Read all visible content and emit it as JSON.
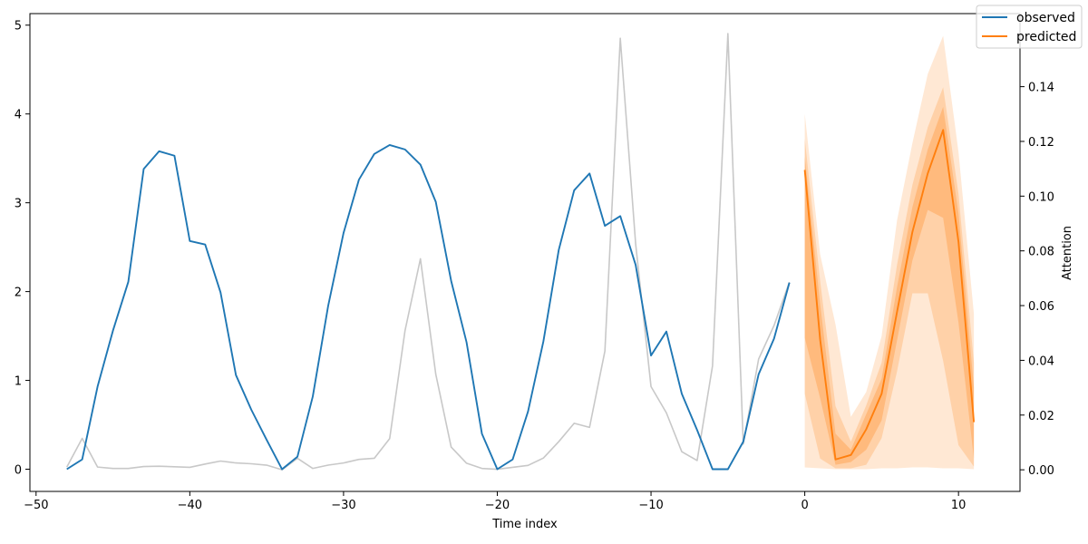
{
  "chart_data": {
    "type": "line",
    "xlabel": "Time index",
    "ylabel": "",
    "y2label": "Attention",
    "xlim": [
      -50.4,
      14
    ],
    "ylim": [
      -0.25,
      5.13
    ],
    "y2lim": [
      -0.0079,
      0.1667
    ],
    "x_ticks": [
      -50,
      -40,
      -30,
      -20,
      -10,
      0,
      10
    ],
    "y_ticks": [
      0,
      1,
      2,
      3,
      4,
      5
    ],
    "y2_ticks": [
      0.0,
      0.02,
      0.04,
      0.06,
      0.08,
      0.1,
      0.12,
      0.14
    ],
    "grid": false,
    "legend_position": "top-right",
    "colors": {
      "observed": "#1f77b4",
      "predicted": "#ff7f0e",
      "attention": "#c8c8c8"
    },
    "series": [
      {
        "name": "observed",
        "axis": "left",
        "x": [
          -48,
          -47,
          -46,
          -45,
          -44,
          -43,
          -42,
          -41,
          -40,
          -39,
          -38,
          -37,
          -36,
          -35,
          -34,
          -33,
          -32,
          -31,
          -30,
          -29,
          -28,
          -27,
          -26,
          -25,
          -24,
          -23,
          -22,
          -21,
          -20,
          -19,
          -18,
          -17,
          -16,
          -15,
          -14,
          -13,
          -12,
          -11,
          -10,
          -9,
          -8,
          -7,
          -6,
          -5,
          -4,
          -3,
          -2,
          -1
        ],
        "y": [
          0.0,
          0.11,
          0.93,
          1.56,
          2.11,
          3.38,
          3.58,
          3.53,
          2.57,
          2.53,
          1.99,
          1.06,
          0.67,
          0.33,
          0.0,
          0.14,
          0.82,
          1.84,
          2.66,
          3.26,
          3.55,
          3.65,
          3.6,
          3.43,
          3.01,
          2.12,
          1.43,
          0.4,
          0.0,
          0.11,
          0.65,
          1.44,
          2.47,
          3.14,
          3.33,
          2.74,
          2.85,
          2.3,
          1.28,
          1.55,
          0.85,
          0.44,
          0.0,
          0.0,
          0.31,
          1.07,
          1.47,
          2.1
        ]
      },
      {
        "name": "",
        "axis": "right",
        "x": [
          -48,
          -47,
          -46,
          -45,
          -44,
          -43,
          -42,
          -41,
          -40,
          -39,
          -38,
          -37,
          -36,
          -35,
          -34,
          -33,
          -32,
          -31,
          -30,
          -29,
          -28,
          -27,
          -26,
          -25,
          -24,
          -23,
          -22,
          -21,
          -20,
          -19,
          -18,
          -17,
          -16,
          -15,
          -14,
          -13,
          -12,
          -11,
          -10,
          -9,
          -8,
          -7,
          -6,
          -5,
          -4,
          -3,
          -2,
          -1
        ],
        "y": [
          0.001,
          0.0115,
          0.001,
          0.0005,
          0.0005,
          0.0012,
          0.0013,
          0.0011,
          0.0009,
          0.0021,
          0.0032,
          0.0025,
          0.0022,
          0.0017,
          0.0,
          0.0042,
          0.0005,
          0.0017,
          0.0025,
          0.0038,
          0.0042,
          0.0114,
          0.0509,
          0.0771,
          0.0349,
          0.0083,
          0.0024,
          0.0005,
          0.0002,
          0.0009,
          0.0016,
          0.0043,
          0.0103,
          0.017,
          0.0155,
          0.0434,
          0.1577,
          0.0825,
          0.0304,
          0.0208,
          0.0066,
          0.0034,
          0.038,
          0.1594,
          0.0094,
          0.0405,
          0.0527,
          0.0686
        ]
      },
      {
        "name": "predicted",
        "axis": "left",
        "x": [
          0,
          1,
          2,
          3,
          4,
          5,
          6,
          7,
          8,
          9,
          10,
          11
        ],
        "y": [
          3.37,
          1.46,
          0.11,
          0.16,
          0.45,
          0.85,
          1.77,
          2.67,
          3.33,
          3.82,
          2.56,
          0.53
        ]
      }
    ],
    "bands": [
      {
        "x": [
          0,
          1,
          2,
          3,
          4,
          5,
          6,
          7,
          8,
          9,
          10,
          11
        ],
        "lower": [
          0.02,
          0.01,
          0.0,
          0.0,
          0.0,
          0.01,
          0.01,
          0.02,
          0.02,
          0.01,
          0.01,
          0.0
        ],
        "upper": [
          4.0,
          2.42,
          1.63,
          0.59,
          0.87,
          1.5,
          2.8,
          3.67,
          4.45,
          4.88,
          3.57,
          1.75
        ],
        "opacity": 0.18
      },
      {
        "x": [
          0,
          1,
          2,
          3,
          4,
          5,
          6,
          7,
          8,
          9,
          10,
          11
        ],
        "lower": [
          0.85,
          0.12,
          0.01,
          0.01,
          0.05,
          0.35,
          1.1,
          1.98,
          1.98,
          1.22,
          0.27,
          0.03
        ],
        "upper": [
          3.72,
          2.12,
          0.71,
          0.31,
          0.72,
          1.2,
          2.3,
          3.2,
          3.85,
          4.3,
          3.1,
          1.2
        ],
        "opacity": 0.22
      },
      {
        "x": [
          0,
          1,
          2,
          3,
          4,
          5,
          6,
          7,
          8,
          9,
          10,
          11
        ],
        "lower": [
          1.48,
          0.8,
          0.05,
          0.08,
          0.22,
          0.55,
          1.45,
          2.35,
          2.92,
          2.83,
          1.65,
          0.12
        ],
        "upper": [
          3.52,
          1.86,
          0.4,
          0.22,
          0.62,
          1.02,
          2.05,
          2.95,
          3.6,
          4.08,
          2.88,
          0.92
        ],
        "opacity": 0.28
      }
    ],
    "legend": [
      "observed",
      "predicted"
    ]
  }
}
